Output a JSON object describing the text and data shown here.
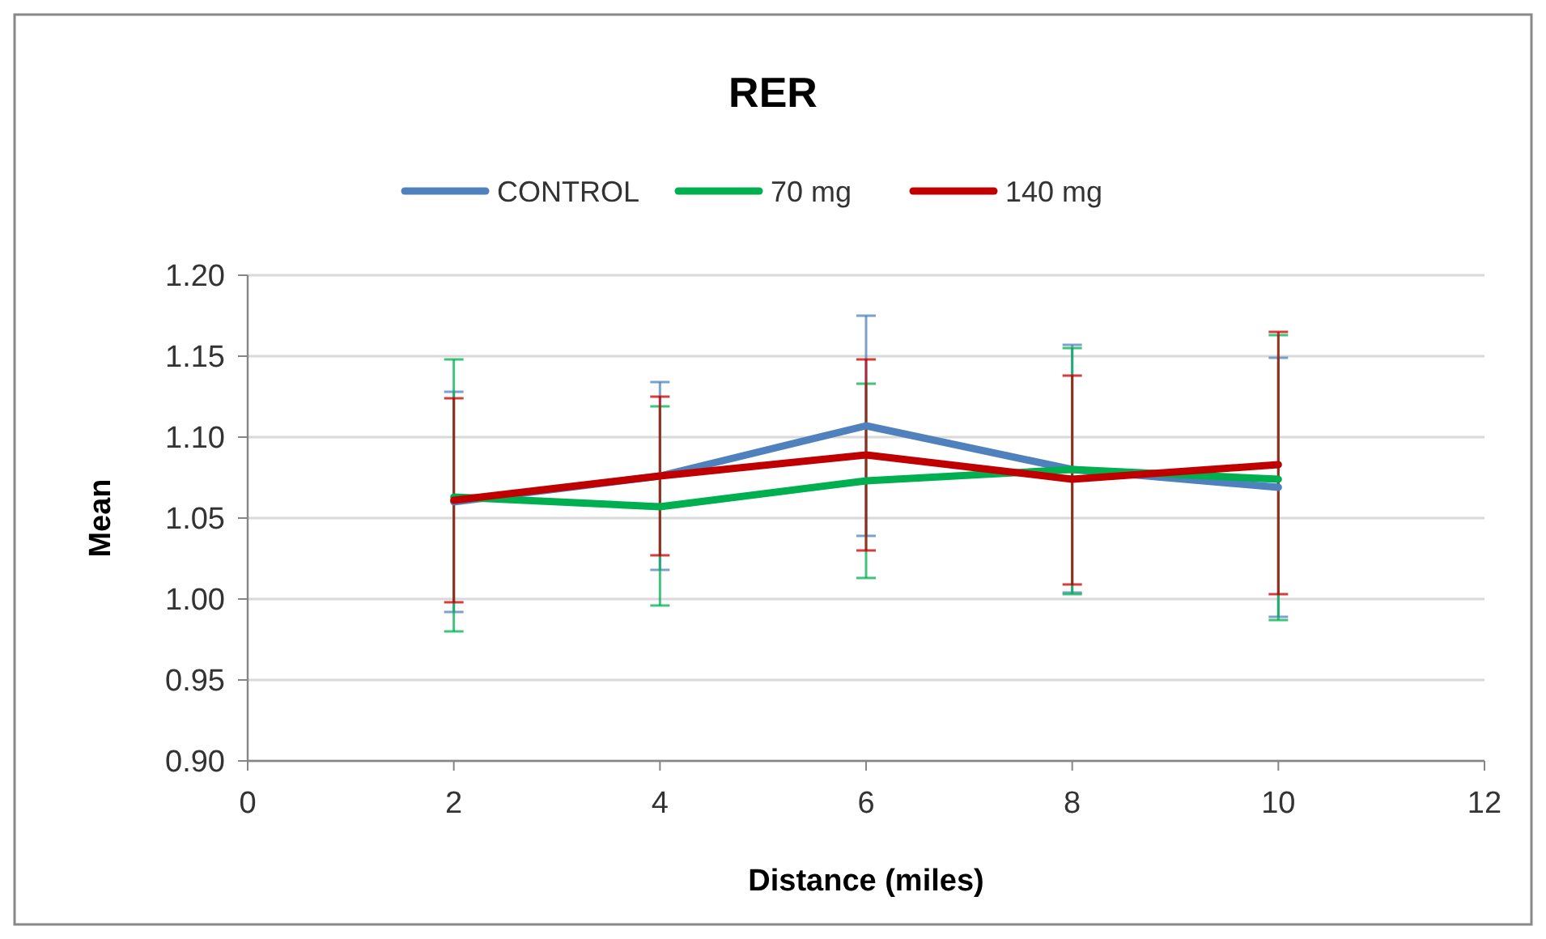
{
  "chart_data": {
    "type": "line",
    "title": "RER",
    "xlabel": "Distance (miles)",
    "ylabel": "Mean",
    "x": [
      2,
      4,
      6,
      8,
      10
    ],
    "xlim": [
      0,
      12
    ],
    "xticks": [
      0,
      2,
      4,
      6,
      8,
      10,
      12
    ],
    "ylim": [
      0.9,
      1.2
    ],
    "yticks": [
      {
        "value": 0.9,
        "label": "0.90"
      },
      {
        "value": 0.95,
        "label": "0.95"
      },
      {
        "value": 1.0,
        "label": "1.00"
      },
      {
        "value": 1.05,
        "label": "1.05"
      },
      {
        "value": 1.1,
        "label": "1.10"
      },
      {
        "value": 1.15,
        "label": "1.15"
      },
      {
        "value": 1.2,
        "label": "1.20"
      }
    ],
    "grid": "y",
    "legend": "top",
    "marker": "none",
    "line_style": "solid",
    "series": [
      {
        "name": "CONTROL",
        "color": "#4f81bd",
        "values": [
          1.06,
          1.076,
          1.107,
          1.08,
          1.069
        ],
        "errors": [
          [
            0.992,
            1.128
          ],
          [
            1.018,
            1.134
          ],
          [
            1.039,
            1.175
          ],
          [
            1.004,
            1.157
          ],
          [
            0.989,
            1.149
          ]
        ]
      },
      {
        "name": "70 mg",
        "color": "#00b050",
        "values": [
          1.063,
          1.057,
          1.073,
          1.08,
          1.074
        ],
        "errors": [
          [
            0.98,
            1.148
          ],
          [
            0.996,
            1.119
          ],
          [
            1.013,
            1.133
          ],
          [
            1.003,
            1.155
          ],
          [
            0.987,
            1.163
          ]
        ]
      },
      {
        "name": "140 mg",
        "color": "#c00000",
        "values": [
          1.061,
          1.076,
          1.089,
          1.074,
          1.083
        ],
        "errors": [
          [
            0.998,
            1.124
          ],
          [
            1.027,
            1.125
          ],
          [
            1.03,
            1.148
          ],
          [
            1.009,
            1.138
          ],
          [
            1.003,
            1.165
          ]
        ]
      }
    ]
  }
}
